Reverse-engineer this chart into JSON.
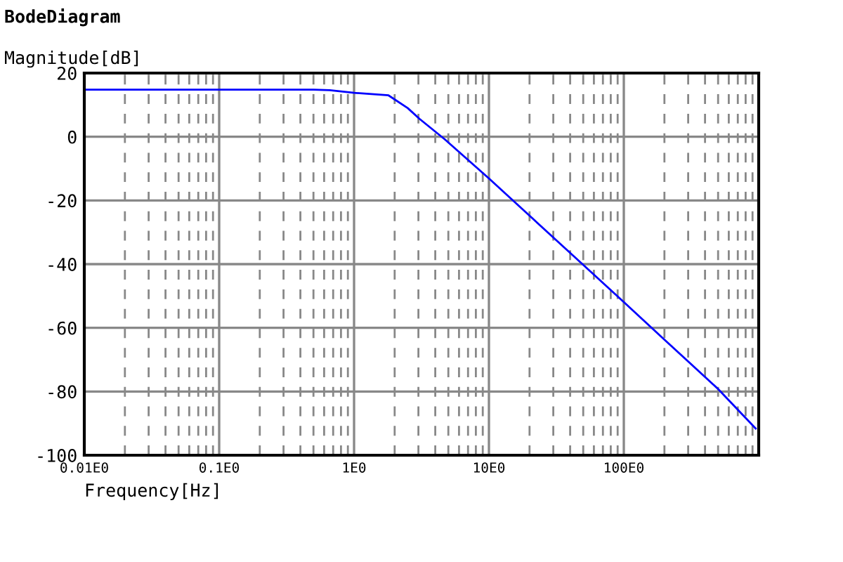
{
  "chart_data": {
    "type": "line",
    "title": "BodeDiagram",
    "xlabel": "Frequency[Hz]",
    "ylabel": "Magnitude[dB]",
    "log": "x",
    "grid": true,
    "marker": "none",
    "line_style": "solid",
    "x": [
      0.01,
      0.1,
      0.5,
      0.66,
      1,
      1.8,
      2.5,
      3.06,
      4.7,
      10,
      20,
      50,
      100,
      200,
      500,
      950
    ],
    "series": [
      {
        "color": "#0000ff",
        "values": [
          14.8,
          14.8,
          14.8,
          14.6,
          13.8,
          13.0,
          9.0,
          5.6,
          -0.8,
          -13.1,
          -24.8,
          -40.2,
          -51.9,
          -63.7,
          -79.2,
          -91.6
        ]
      }
    ],
    "xlim": [
      0.01,
      1000
    ],
    "ylim": [
      -100,
      20
    ],
    "yticks": [
      -100,
      -80,
      -60,
      -40,
      -20,
      0,
      20
    ],
    "xticks": [
      {
        "value": 0.01,
        "label": "0.01E0"
      },
      {
        "value": 0.02,
        "label": null
      },
      {
        "value": 0.03,
        "label": null
      },
      {
        "value": 0.04,
        "label": null
      },
      {
        "value": 0.05,
        "label": null
      },
      {
        "value": 0.06,
        "label": null
      },
      {
        "value": 0.07,
        "label": null
      },
      {
        "value": 0.08,
        "label": null
      },
      {
        "value": 0.09,
        "label": null
      },
      {
        "value": 0.1,
        "label": "0.1E0"
      },
      {
        "value": 0.2,
        "label": null
      },
      {
        "value": 0.3,
        "label": null
      },
      {
        "value": 0.4,
        "label": null
      },
      {
        "value": 0.5,
        "label": null
      },
      {
        "value": 0.6,
        "label": null
      },
      {
        "value": 0.7,
        "label": null
      },
      {
        "value": 0.8,
        "label": null
      },
      {
        "value": 0.9,
        "label": null
      },
      {
        "value": 1,
        "label": "1E0"
      },
      {
        "value": 2,
        "label": null
      },
      {
        "value": 3,
        "label": null
      },
      {
        "value": 4,
        "label": null
      },
      {
        "value": 5,
        "label": null
      },
      {
        "value": 6,
        "label": null
      },
      {
        "value": 7,
        "label": null
      },
      {
        "value": 8,
        "label": null
      },
      {
        "value": 9,
        "label": null
      },
      {
        "value": 10,
        "label": "10E0"
      },
      {
        "value": 20,
        "label": null
      },
      {
        "value": 30,
        "label": null
      },
      {
        "value": 40,
        "label": null
      },
      {
        "value": 50,
        "label": null
      },
      {
        "value": 60,
        "label": null
      },
      {
        "value": 70,
        "label": null
      },
      {
        "value": 80,
        "label": null
      },
      {
        "value": 90,
        "label": null
      },
      {
        "value": 100,
        "label": "100E0"
      },
      {
        "value": 200,
        "label": null
      },
      {
        "value": 300,
        "label": null
      },
      {
        "value": 400,
        "label": null
      },
      {
        "value": 500,
        "label": null
      },
      {
        "value": 600,
        "label": null
      },
      {
        "value": 700,
        "label": null
      },
      {
        "value": 800,
        "label": null
      },
      {
        "value": 900,
        "label": null
      }
    ]
  }
}
